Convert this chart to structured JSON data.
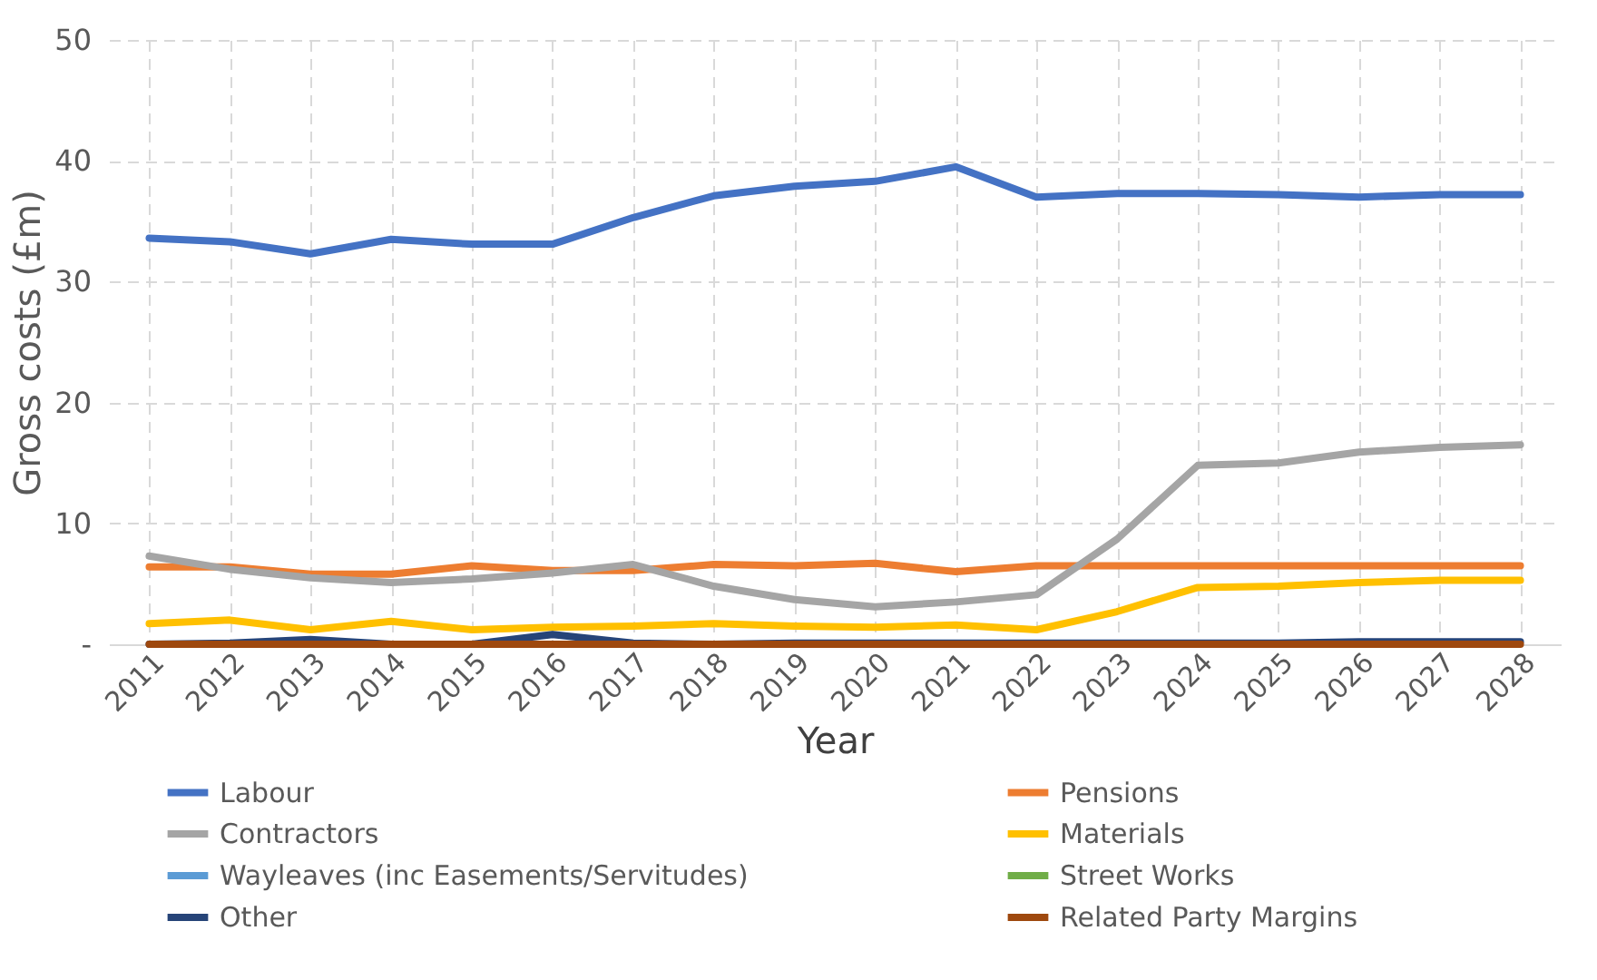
{
  "chart_data": {
    "type": "line",
    "xlabel": "Year",
    "ylabel": "Gross costs (£m)",
    "categories": [
      "2011",
      "2012",
      "2013",
      "2014",
      "2015",
      "2016",
      "2017",
      "2018",
      "2019",
      "2020",
      "2021",
      "2022",
      "2023",
      "2024",
      "2025",
      "2026",
      "2027",
      "2028"
    ],
    "series": [
      {
        "name": "Labour",
        "color": "#4472c4",
        "values": [
          33.6,
          33.3,
          32.3,
          33.5,
          33.1,
          33.1,
          35.3,
          37.1,
          37.9,
          38.3,
          39.5,
          37.0,
          37.3,
          37.3,
          37.2,
          37.0,
          37.2,
          37.2
        ]
      },
      {
        "name": "Pensions",
        "color": "#ed7d31",
        "values": [
          6.4,
          6.4,
          5.8,
          5.8,
          6.5,
          6.1,
          6.1,
          6.6,
          6.5,
          6.7,
          6.0,
          6.5,
          6.5,
          6.5,
          6.5,
          6.5,
          6.5,
          6.5
        ]
      },
      {
        "name": "Contractors",
        "color": "#a5a5a5",
        "values": [
          7.3,
          6.2,
          5.5,
          5.1,
          5.4,
          5.9,
          6.6,
          4.8,
          3.7,
          3.1,
          3.5,
          4.1,
          8.7,
          14.8,
          15.0,
          15.9,
          16.3,
          16.5
        ]
      },
      {
        "name": "Materials",
        "color": "#ffc000",
        "values": [
          1.7,
          2.0,
          1.2,
          1.9,
          1.2,
          1.4,
          1.5,
          1.7,
          1.5,
          1.4,
          1.6,
          1.2,
          2.7,
          4.7,
          4.8,
          5.1,
          5.3,
          5.3
        ]
      },
      {
        "name": "Wayleaves (inc Easements/Servitudes)",
        "color": "#5b9bd5",
        "values": [
          null,
          null,
          null,
          null,
          null,
          null,
          null,
          null,
          null,
          null,
          null,
          null,
          null,
          null,
          null,
          null,
          null,
          null
        ]
      },
      {
        "name": "Street Works",
        "color": "#70ad47",
        "values": [
          null,
          null,
          null,
          null,
          null,
          null,
          null,
          null,
          null,
          null,
          null,
          null,
          null,
          null,
          null,
          null,
          null,
          null
        ]
      },
      {
        "name": "Other",
        "color": "#264478",
        "values": [
          0,
          0.1,
          0.4,
          0,
          0,
          0.8,
          0.1,
          0,
          0.1,
          0.1,
          0.1,
          0.1,
          0.1,
          0.1,
          0.1,
          0.2,
          0.2,
          0.2
        ]
      },
      {
        "name": "Related Party Margins",
        "color": "#9e480e",
        "values": [
          0,
          0,
          0,
          0,
          0,
          0,
          0,
          0,
          0,
          0,
          0,
          0,
          0,
          0,
          0,
          0,
          0,
          0
        ]
      }
    ],
    "ylim": [
      0,
      50
    ],
    "yticks": [
      {
        "value": 0,
        "label": "-"
      },
      10,
      20,
      30,
      40,
      50
    ],
    "grid": true,
    "line_style": "solid",
    "legend": "bottom"
  }
}
